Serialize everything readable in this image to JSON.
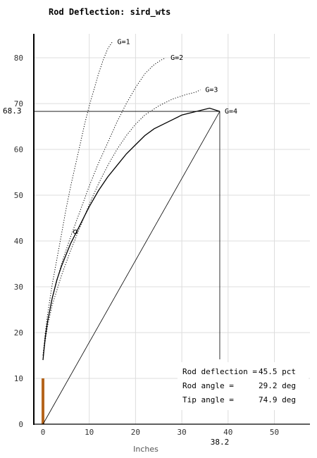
{
  "chart_data": {
    "type": "line",
    "title": "Rod Deflection: sird_wts",
    "xlabel": "Inches",
    "ylabel": "",
    "xlim": [
      -2,
      58
    ],
    "ylim": [
      0,
      86
    ],
    "x_ticks": [
      0,
      10,
      20,
      30,
      40,
      50
    ],
    "y_ticks": [
      0,
      10,
      20,
      30,
      40,
      50,
      60,
      70,
      80
    ],
    "grid": true,
    "series": [
      {
        "name": "G=1",
        "style": "dotted",
        "points": [
          [
            0,
            15
          ],
          [
            0.5,
            20
          ],
          [
            1,
            24
          ],
          [
            2,
            30.5
          ],
          [
            3,
            36
          ],
          [
            4,
            41.5
          ],
          [
            5,
            47
          ],
          [
            6,
            52
          ],
          [
            7,
            56.5
          ],
          [
            8,
            61
          ],
          [
            9,
            65.5
          ],
          [
            10,
            69.5
          ],
          [
            11,
            73
          ],
          [
            12,
            76.5
          ],
          [
            13,
            79.5
          ],
          [
            14,
            82
          ],
          [
            15,
            83.5
          ]
        ]
      },
      {
        "name": "G=2",
        "style": "dotted",
        "points": [
          [
            0,
            15
          ],
          [
            1,
            22.5
          ],
          [
            2,
            27.5
          ],
          [
            4,
            35
          ],
          [
            6,
            41
          ],
          [
            8,
            46.5
          ],
          [
            10,
            52
          ],
          [
            12,
            57
          ],
          [
            14,
            61.5
          ],
          [
            16,
            66
          ],
          [
            18,
            70
          ],
          [
            20,
            73.5
          ],
          [
            22,
            76.5
          ],
          [
            24,
            78.5
          ],
          [
            25.5,
            79.5
          ],
          [
            26.5,
            80
          ]
        ]
      },
      {
        "name": "G=3",
        "style": "dotted",
        "points": [
          [
            0,
            15
          ],
          [
            1,
            21.5
          ],
          [
            2,
            26
          ],
          [
            4,
            32.5
          ],
          [
            6,
            38
          ],
          [
            8,
            43
          ],
          [
            10,
            48
          ],
          [
            12,
            52.5
          ],
          [
            14,
            56.5
          ],
          [
            16,
            60
          ],
          [
            18,
            63
          ],
          [
            20,
            65.5
          ],
          [
            22,
            67.5
          ],
          [
            25,
            69.5
          ],
          [
            28,
            71
          ],
          [
            31,
            72
          ],
          [
            33,
            72.5
          ],
          [
            34,
            73
          ]
        ]
      },
      {
        "name": "G=4",
        "style": "solid",
        "points": [
          [
            0,
            14
          ],
          [
            0.5,
            19
          ],
          [
            1,
            22.5
          ],
          [
            2,
            27.5
          ],
          [
            3,
            31.5
          ],
          [
            4,
            34.5
          ],
          [
            5,
            37
          ],
          [
            6,
            39.5
          ],
          [
            7,
            41.5
          ],
          [
            8,
            43.5
          ],
          [
            9,
            45.5
          ],
          [
            10,
            47.5
          ],
          [
            12,
            51
          ],
          [
            14,
            54
          ],
          [
            16,
            56.5
          ],
          [
            18,
            59
          ],
          [
            20,
            61
          ],
          [
            22,
            63
          ],
          [
            24,
            64.5
          ],
          [
            26,
            65.5
          ],
          [
            28,
            66.5
          ],
          [
            30,
            67.5
          ],
          [
            32,
            68
          ],
          [
            34,
            68.5
          ],
          [
            36,
            69
          ],
          [
            38.2,
            68.3
          ]
        ]
      }
    ],
    "chord": [
      [
        0,
        0
      ],
      [
        38.2,
        68.3
      ]
    ],
    "rod_butt": {
      "x": 0,
      "y_from": 0,
      "y_to": 10,
      "color": "#b5651d"
    },
    "marker": {
      "x": 7,
      "y": 42
    },
    "tip": {
      "x": 38.2,
      "y": 68.3,
      "x_label": "38.2",
      "y_label": "68.3"
    },
    "stats": [
      {
        "label": "Rod deflection =",
        "value": "45.5 pct"
      },
      {
        "label": "Rod angle =",
        "value": "29.2 deg"
      },
      {
        "label": "Tip angle =",
        "value": "74.9 deg"
      }
    ]
  }
}
